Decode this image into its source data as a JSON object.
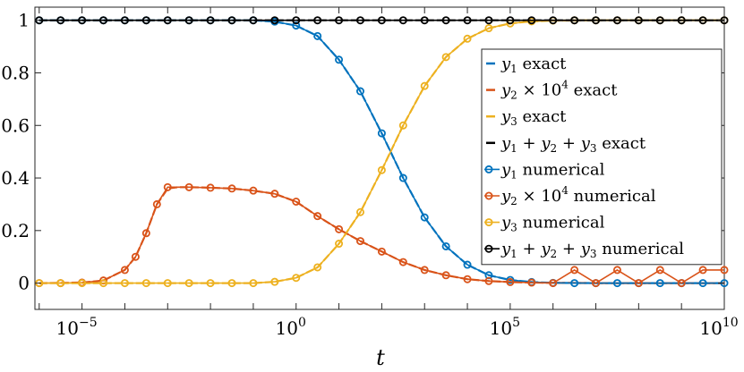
{
  "chart_data": {
    "type": "line",
    "xlabel": "t",
    "ylabel": "",
    "xscale": "log",
    "xlim_log10": [
      -6.1,
      10
    ],
    "ylim": [
      -0.1,
      1.05
    ],
    "grid": false,
    "legend_position": "center-right",
    "x_tick_labels": [
      {
        "base": "10",
        "exp": "−5",
        "log10": -5
      },
      {
        "base": "10",
        "exp": "0",
        "log10": 0
      },
      {
        "base": "10",
        "exp": "5",
        "log10": 5
      },
      {
        "base": "10",
        "exp": "10",
        "log10": 10
      }
    ],
    "y_ticks": [
      0,
      0.2,
      0.4,
      0.6,
      0.8,
      1
    ],
    "y_tick_labels": [
      "0",
      "0.2",
      "0.4",
      "0.6",
      "0.8",
      "1"
    ],
    "series": [
      {
        "name": "y1 exact",
        "legend": {
          "var": "y",
          "sub": "1",
          "times": "",
          "sup": "",
          "suffix": " exact"
        },
        "color": "#0072BD",
        "style": "line",
        "log10_t": [
          -6,
          -5,
          -4,
          -3,
          -2,
          -1,
          -0.5,
          0,
          0.5,
          1,
          1.5,
          2,
          2.5,
          3,
          3.5,
          4,
          4.5,
          5,
          5.5,
          6,
          7,
          8,
          9,
          10
        ],
        "y": [
          1,
          1,
          1,
          1,
          1,
          1,
          0.995,
          0.98,
          0.94,
          0.85,
          0.73,
          0.57,
          0.4,
          0.25,
          0.14,
          0.07,
          0.03,
          0.012,
          0.004,
          0.001,
          0,
          0,
          0,
          0
        ]
      },
      {
        "name": "y2 × 10^4 exact",
        "legend": {
          "var": "y",
          "sub": "2",
          "times": " × 10",
          "sup": "4",
          "suffix": " exact"
        },
        "color": "#D95319",
        "style": "line",
        "log10_t": [
          -6,
          -5,
          -4.5,
          -4,
          -3.75,
          -3.5,
          -3.25,
          -3,
          -2.75,
          -2.5,
          -2,
          -1.5,
          -1,
          -0.5,
          0,
          0.5,
          1,
          1.5,
          2,
          2.5,
          3,
          3.5,
          4,
          4.5,
          5,
          5.5,
          6,
          7,
          8,
          9,
          10
        ],
        "y": [
          0,
          0.002,
          0.01,
          0.05,
          0.1,
          0.19,
          0.3,
          0.36,
          0.365,
          0.365,
          0.363,
          0.36,
          0.352,
          0.34,
          0.31,
          0.255,
          0.205,
          0.16,
          0.12,
          0.08,
          0.05,
          0.03,
          0.015,
          0.008,
          0.004,
          0.002,
          0.001,
          0,
          0,
          0,
          0
        ]
      },
      {
        "name": "y3 exact",
        "legend": {
          "var": "y",
          "sub": "3",
          "times": "",
          "sup": "",
          "suffix": " exact"
        },
        "color": "#EDB120",
        "style": "line",
        "log10_t": [
          -6,
          -5,
          -4,
          -3,
          -2,
          -1,
          -0.5,
          0,
          0.5,
          1,
          1.5,
          2,
          2.5,
          3,
          3.5,
          4,
          4.5,
          5,
          5.5,
          6,
          7,
          8,
          9,
          10
        ],
        "y": [
          0,
          0,
          0,
          0,
          0,
          0,
          0.005,
          0.02,
          0.06,
          0.15,
          0.27,
          0.43,
          0.6,
          0.75,
          0.86,
          0.93,
          0.97,
          0.988,
          0.996,
          0.999,
          1,
          1,
          1,
          1
        ]
      },
      {
        "name": "y1 + y2 + y3 exact",
        "legend": {
          "var": "y",
          "sub": "1",
          "times": "",
          "sup": "",
          "suffix": " + y2 + y3 exact",
          "extra": [
            {
              "var": "y",
              "sub": "2"
            },
            {
              "var": "y",
              "sub": "3"
            }
          ]
        },
        "color": "#000000",
        "style": "line",
        "log10_t": [
          -6,
          10
        ],
        "y": [
          1,
          1
        ]
      },
      {
        "name": "y1 numerical",
        "legend": {
          "var": "y",
          "sub": "1",
          "times": "",
          "sup": "",
          "suffix": " numerical"
        },
        "color": "#0072BD",
        "style": "markers",
        "log10_t": [
          -6,
          -5.5,
          -5,
          -4.5,
          -4,
          -3.5,
          -3,
          -2.5,
          -2,
          -1.5,
          -1,
          -0.5,
          0,
          0.5,
          1,
          1.5,
          2,
          2.5,
          3,
          3.5,
          4,
          4.5,
          5,
          5.5,
          6,
          6.5,
          7,
          7.5,
          8,
          8.5,
          9,
          9.5,
          10
        ],
        "y": [
          1,
          1,
          1,
          1,
          1,
          1,
          1,
          1,
          1,
          1,
          1,
          0.995,
          0.98,
          0.94,
          0.85,
          0.73,
          0.57,
          0.4,
          0.25,
          0.14,
          0.07,
          0.03,
          0.012,
          0.004,
          0.001,
          0,
          0,
          0,
          0,
          0,
          0,
          0,
          0
        ]
      },
      {
        "name": "y2 × 10^4 numerical",
        "legend": {
          "var": "y",
          "sub": "2",
          "times": " × 10",
          "sup": "4",
          "suffix": " numerical"
        },
        "color": "#D95319",
        "style": "markers",
        "log10_t": [
          -6,
          -5.5,
          -5,
          -4.5,
          -4,
          -3.75,
          -3.5,
          -3.25,
          -3,
          -2.5,
          -2,
          -1.5,
          -1,
          -0.5,
          0,
          0.5,
          1,
          1.5,
          2,
          2.5,
          3,
          3.5,
          4,
          4.5,
          5,
          5.5,
          6,
          6.5,
          7,
          7.5,
          8,
          8.5,
          9,
          9.5,
          10
        ],
        "y": [
          0,
          0,
          0.002,
          0.01,
          0.05,
          0.1,
          0.19,
          0.3,
          0.365,
          0.365,
          0.363,
          0.36,
          0.352,
          0.34,
          0.31,
          0.255,
          0.205,
          0.16,
          0.12,
          0.08,
          0.05,
          0.03,
          0.015,
          0.008,
          0.004,
          0.002,
          0,
          0.05,
          0,
          0.05,
          0,
          0.05,
          0,
          0.05,
          0.05
        ]
      },
      {
        "name": "y3 numerical",
        "legend": {
          "var": "y",
          "sub": "3",
          "times": "",
          "sup": "",
          "suffix": " numerical"
        },
        "color": "#EDB120",
        "style": "markers",
        "log10_t": [
          -6,
          -5.5,
          -5,
          -4.5,
          -4,
          -3.5,
          -3,
          -2.5,
          -2,
          -1.5,
          -1,
          -0.5,
          0,
          0.5,
          1,
          1.5,
          2,
          2.5,
          3,
          3.5,
          4,
          4.5,
          5,
          5.5,
          6,
          6.5,
          7,
          7.5,
          8,
          8.5,
          9,
          9.5,
          10
        ],
        "y": [
          0,
          0,
          0,
          0,
          0,
          0,
          0,
          0,
          0,
          0,
          0,
          0.005,
          0.02,
          0.06,
          0.15,
          0.27,
          0.43,
          0.6,
          0.75,
          0.86,
          0.93,
          0.97,
          0.988,
          0.996,
          0.999,
          1,
          1,
          1,
          1,
          1,
          1,
          1,
          1
        ]
      },
      {
        "name": "y1 + y2 + y3 numerical",
        "legend": {
          "var": "y",
          "sub": "1",
          "times": "",
          "sup": "",
          "suffix": " numerical",
          "extra": [
            {
              "var": "y",
              "sub": "2"
            },
            {
              "var": "y",
              "sub": "3"
            }
          ]
        },
        "color": "#000000",
        "style": "markers",
        "log10_t": [
          -6,
          -5.5,
          -5,
          -4.5,
          -4,
          -3.5,
          -3,
          -2.5,
          -2,
          -1.5,
          -1,
          -0.5,
          0,
          0.5,
          1,
          1.5,
          2,
          2.5,
          3,
          3.5,
          4,
          4.5,
          5,
          5.5,
          6,
          6.5,
          7,
          7.5,
          8,
          8.5,
          9,
          9.5,
          10
        ],
        "y": [
          1,
          1,
          1,
          1,
          1,
          1,
          1,
          1,
          1,
          1,
          1,
          1,
          1,
          1,
          1,
          1,
          1,
          1,
          1,
          1,
          1,
          1,
          1,
          1,
          1,
          1,
          1,
          1,
          1,
          1,
          1,
          1,
          1
        ]
      }
    ]
  }
}
